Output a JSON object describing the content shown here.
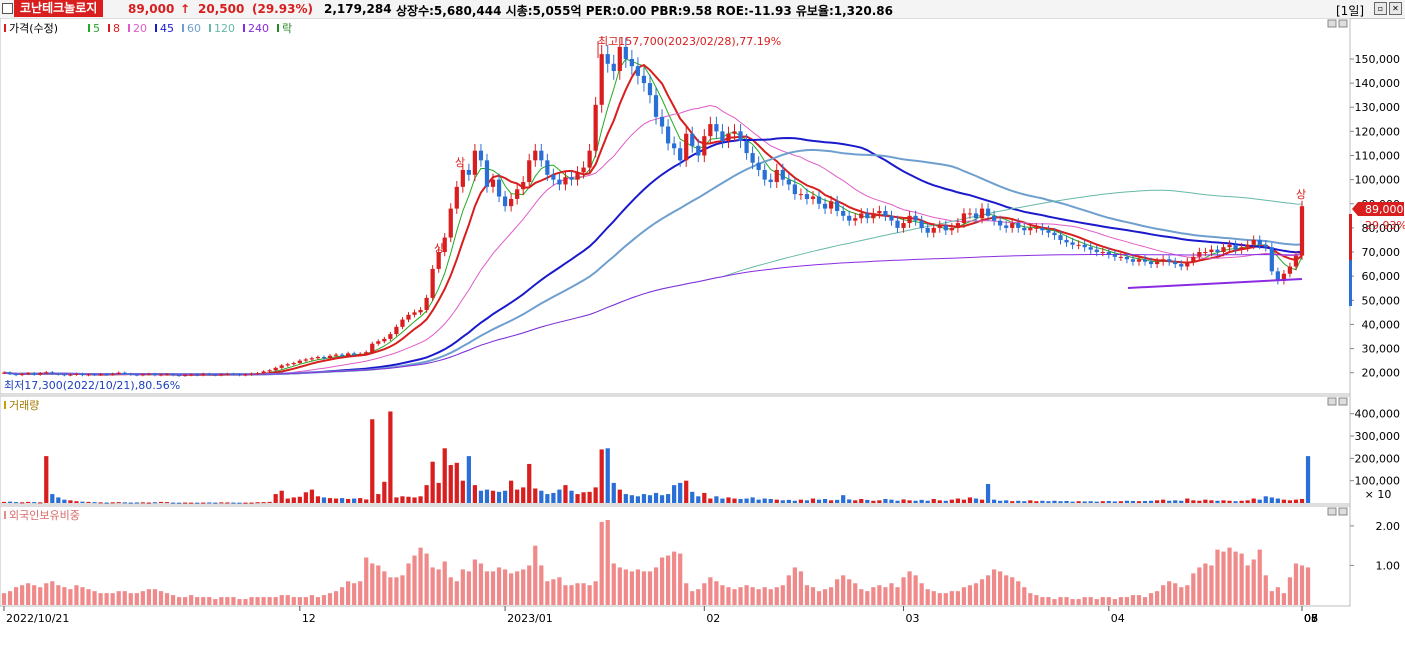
{
  "header": {
    "stock_name": "코난테크놀로지",
    "price": "89,000",
    "change_arrow": "↑",
    "change": "20,500",
    "change_pct": "(29.93%)",
    "volume": "2,179,284",
    "stats": "상장수:5,680,444 시총:5,055억 PER:0.00 PBR:9.58 ROE:-11.93 유보율:1,320.86",
    "period": "[1일]",
    "accent_up": "#d81e1e",
    "accent_down": "#2a6fd6"
  },
  "price_panel": {
    "legend": {
      "price_label": "가격(수정)",
      "ma_labels": [
        "5",
        "8",
        "20",
        "45",
        "60",
        "120",
        "240"
      ],
      "ma_colors": [
        "#22aa22",
        "#d81e1e",
        "#e05cc8",
        "#1a1acc",
        "#6f9fcf",
        "#66b8a8",
        "#8a2be2"
      ],
      "fall_label": "락"
    },
    "high_annotation": "최고157,700(2023/02/28),77.19%",
    "low_annotation": "최저17,300(2022/10/21),80.56%",
    "limit_up_label": "상",
    "current_price_tag": "89,000",
    "current_pct_tag": "29.93%"
  },
  "volume_panel": {
    "legend": "거래량",
    "unit": "× 10"
  },
  "foreign_panel": {
    "legend": "외국인보유비중"
  },
  "x_axis": {
    "labels": [
      "2022/10/21",
      "12",
      "2023/01",
      "02",
      "03",
      "04",
      "05",
      "06",
      "07",
      "08"
    ]
  },
  "chart_data": [
    {
      "type": "candlestick",
      "title": "가격(수정)",
      "y_ticks": [
        20000,
        30000,
        40000,
        50000,
        60000,
        70000,
        80000,
        90000,
        100000,
        110000,
        120000,
        130000,
        140000,
        150000
      ],
      "y_tick_labels": [
        "20,000",
        "30,000",
        "40,000",
        "50,000",
        "60,000",
        "70,000",
        "80,000",
        "90,000",
        "100,000",
        "110,000",
        "120,000",
        "130,000",
        "140,000",
        "150,000"
      ],
      "ylim": [
        12000,
        162000
      ],
      "closes": [
        20000,
        19500,
        19000,
        19500,
        19800,
        19200,
        19800,
        20200,
        19600,
        19300,
        19000,
        19200,
        19500,
        19000,
        19300,
        19100,
        19400,
        19200,
        19500,
        20000,
        19500,
        19200,
        19000,
        19300,
        19500,
        19000,
        19200,
        19400,
        19000,
        18800,
        19000,
        19200,
        19000,
        19500,
        19200,
        19000,
        19300,
        19500,
        19300,
        19000,
        19200,
        19600,
        19800,
        20500,
        21000,
        22000,
        23000,
        23500,
        24000,
        25000,
        25500,
        26000,
        26500,
        26000,
        27000,
        27500,
        27000,
        28000,
        27500,
        27800,
        28500,
        32000,
        33000,
        34000,
        36000,
        39000,
        42000,
        44000,
        45000,
        46000,
        51000,
        63000,
        70000,
        76000,
        88000,
        97000,
        104000,
        102000,
        112000,
        108000,
        97000,
        100000,
        93000,
        89000,
        92000,
        96000,
        99000,
        108000,
        112000,
        108000,
        102000,
        100000,
        98000,
        101000,
        100000,
        103000,
        105000,
        112000,
        131000,
        152000,
        148000,
        145000,
        155000,
        150000,
        147000,
        143000,
        140000,
        135000,
        126000,
        122000,
        115000,
        113000,
        108000,
        119000,
        114000,
        110000,
        118000,
        123000,
        120000,
        116000,
        119000,
        120000,
        116000,
        111000,
        107000,
        104000,
        100000,
        99000,
        104000,
        100000,
        98000,
        94000,
        94000,
        92000,
        93000,
        90000,
        88000,
        91000,
        87000,
        85000,
        83000,
        84000,
        86000,
        84000,
        86000,
        87000,
        85000,
        83000,
        80000,
        82000,
        85000,
        83000,
        80000,
        78000,
        80000,
        81000,
        79000,
        80000,
        82000,
        86000,
        86000,
        84000,
        88000,
        85000,
        83000,
        81000,
        80000,
        82000,
        80000,
        79000,
        80000,
        80000,
        79000,
        78000,
        77000,
        75000,
        74000,
        73000,
        73000,
        72000,
        71000,
        70000,
        70000,
        69000,
        68000,
        68000,
        67000,
        66000,
        67000,
        66000,
        65000,
        66000,
        67000,
        66000,
        65000,
        64000,
        66000,
        68000,
        70000,
        70000,
        71000,
        70000,
        72000,
        73000,
        71000,
        72000,
        73000,
        75000,
        73000,
        72000,
        62000,
        58000,
        61000,
        64000,
        68500,
        89000
      ]
    },
    {
      "type": "bar",
      "title": "거래량",
      "y_ticks": [
        100000,
        200000,
        300000,
        400000
      ],
      "y_tick_labels": [
        "100,000",
        "200,000",
        "300,000",
        "400,000"
      ],
      "ylim": [
        0,
        430000
      ],
      "values": [
        5000,
        6000,
        4000,
        3000,
        5000,
        4000,
        3000,
        210000,
        40000,
        25000,
        15000,
        12000,
        8000,
        6000,
        5000,
        4000,
        3000,
        2000,
        3000,
        4000,
        3000,
        2000,
        2500,
        3000,
        2000,
        3500,
        5000,
        4000,
        2000,
        1500,
        2000,
        1800,
        1500,
        2000,
        2500,
        1800,
        3000,
        2500,
        2000,
        1500,
        1800,
        2000,
        3500,
        4000,
        5000,
        40000,
        55000,
        20000,
        25000,
        28000,
        48000,
        60000,
        30000,
        25000,
        22000,
        20000,
        22000,
        18000,
        20000,
        22000,
        16000,
        375000,
        40000,
        95000,
        410000,
        25000,
        30000,
        28000,
        25000,
        30000,
        80000,
        185000,
        90000,
        245000,
        170000,
        180000,
        100000,
        210000,
        80000,
        55000,
        60000,
        55000,
        50000,
        55000,
        100000,
        60000,
        70000,
        175000,
        65000,
        55000,
        40000,
        45000,
        60000,
        80000,
        55000,
        40000,
        48000,
        50000,
        70000,
        240000,
        245000,
        90000,
        60000,
        40000,
        35000,
        30000,
        40000,
        35000,
        45000,
        35000,
        40000,
        80000,
        90000,
        100000,
        50000,
        30000,
        45000,
        20000,
        30000,
        20000,
        25000,
        20000,
        18000,
        20000,
        25000,
        15000,
        20000,
        18000,
        15000,
        12000,
        14000,
        10000,
        15000,
        12000,
        20000,
        15000,
        18000,
        12000,
        14000,
        35000,
        16000,
        12000,
        18000,
        14000,
        10000,
        12000,
        18000,
        15000,
        10000,
        16000,
        12000,
        10000,
        14000,
        10000,
        18000,
        12000,
        10000,
        15000,
        20000,
        15000,
        25000,
        20000,
        15000,
        85000,
        15000,
        10000,
        12000,
        8000,
        10000,
        8000,
        12000,
        8000,
        10000,
        8000,
        10000,
        8000,
        9000,
        6000,
        8000,
        7000,
        8000,
        6000,
        8000,
        9000,
        7000,
        8000,
        10000,
        9000,
        8000,
        9000,
        10000,
        12000,
        15000,
        10000,
        12000,
        10000,
        20000,
        12000,
        10000,
        15000,
        12000,
        10000,
        12000,
        10000,
        8000,
        10000,
        12000,
        20000,
        15000,
        30000,
        25000,
        20000,
        15000,
        12000,
        15000,
        18000,
        210000
      ]
    },
    {
      "type": "bar",
      "title": "외국인보유비중",
      "y_ticks": [
        1.0,
        2.0
      ],
      "y_tick_labels": [
        "1.00",
        "2.00"
      ],
      "ylim": [
        0,
        2.3
      ],
      "values": [
        0.3,
        0.35,
        0.45,
        0.5,
        0.55,
        0.5,
        0.45,
        0.55,
        0.6,
        0.5,
        0.45,
        0.4,
        0.5,
        0.45,
        0.4,
        0.35,
        0.3,
        0.3,
        0.3,
        0.35,
        0.35,
        0.3,
        0.3,
        0.35,
        0.4,
        0.4,
        0.35,
        0.3,
        0.25,
        0.2,
        0.2,
        0.25,
        0.2,
        0.2,
        0.2,
        0.15,
        0.2,
        0.2,
        0.2,
        0.15,
        0.15,
        0.2,
        0.2,
        0.2,
        0.2,
        0.2,
        0.25,
        0.25,
        0.2,
        0.2,
        0.2,
        0.25,
        0.2,
        0.25,
        0.3,
        0.35,
        0.45,
        0.6,
        0.55,
        0.6,
        1.2,
        1.05,
        1.0,
        0.85,
        0.7,
        0.7,
        0.75,
        1.05,
        1.25,
        1.45,
        1.3,
        0.95,
        0.9,
        1.1,
        0.7,
        0.6,
        0.9,
        0.85,
        1.15,
        1.05,
        0.85,
        0.85,
        0.95,
        0.9,
        0.8,
        0.85,
        0.9,
        1.0,
        1.5,
        1.0,
        0.6,
        0.65,
        0.7,
        0.5,
        0.5,
        0.55,
        0.55,
        0.5,
        0.6,
        2.1,
        2.15,
        1.05,
        0.95,
        0.9,
        0.85,
        0.9,
        0.85,
        0.85,
        0.95,
        1.2,
        1.25,
        1.35,
        1.3,
        0.55,
        0.35,
        0.4,
        0.55,
        0.7,
        0.6,
        0.5,
        0.45,
        0.4,
        0.45,
        0.5,
        0.45,
        0.4,
        0.45,
        0.4,
        0.45,
        0.5,
        0.75,
        0.95,
        0.85,
        0.5,
        0.45,
        0.35,
        0.4,
        0.45,
        0.65,
        0.75,
        0.65,
        0.55,
        0.4,
        0.35,
        0.45,
        0.5,
        0.45,
        0.55,
        0.45,
        0.7,
        0.85,
        0.75,
        0.55,
        0.4,
        0.35,
        0.3,
        0.3,
        0.35,
        0.35,
        0.45,
        0.5,
        0.55,
        0.65,
        0.75,
        0.9,
        0.85,
        0.75,
        0.7,
        0.6,
        0.45,
        0.3,
        0.25,
        0.2,
        0.2,
        0.15,
        0.2,
        0.2,
        0.15,
        0.15,
        0.2,
        0.2,
        0.15,
        0.2,
        0.2,
        0.15,
        0.2,
        0.2,
        0.25,
        0.25,
        0.2,
        0.3,
        0.35,
        0.5,
        0.6,
        0.55,
        0.45,
        0.5,
        0.8,
        0.95,
        1.05,
        1.0,
        1.4,
        1.35,
        1.45,
        1.35,
        1.3,
        1.0,
        1.15,
        1.4,
        0.75,
        0.35,
        0.45,
        0.3,
        0.7,
        1.05,
        1.0,
        0.95
      ]
    }
  ]
}
